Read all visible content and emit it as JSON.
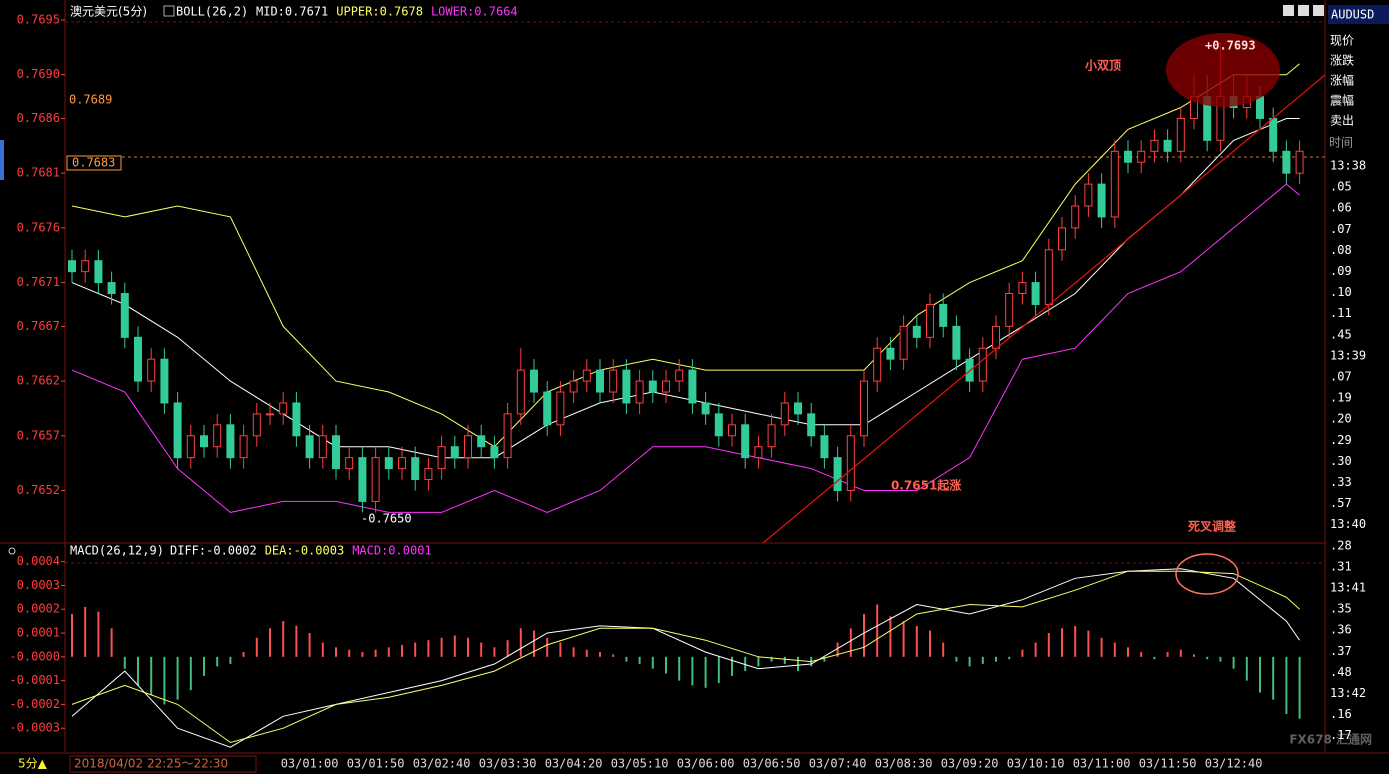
{
  "chart_data": [
    {
      "type": "candlestick",
      "title": "澳元美元(5分)",
      "indicator": "BOLL(26,2)",
      "indicator_values": [
        "MID:0.7671",
        "UPPER:0.7678",
        "LOWER:0.7664"
      ],
      "indicator_colors": [
        "#ffffff",
        "#ffff66",
        "#ff33ff"
      ],
      "categories": [
        null,
        null,
        null,
        null,
        null,
        null,
        null,
        null,
        null,
        null,
        null,
        null,
        null,
        null,
        null,
        null,
        null,
        null,
        "03/01:00",
        null,
        null,
        null,
        null,
        "03/01:50",
        null,
        null,
        null,
        null,
        "03/02:40",
        null,
        null,
        null,
        null,
        "03/03:30",
        null,
        null,
        null,
        null,
        "03/04:20",
        null,
        null,
        null,
        null,
        "03/05:10",
        null,
        null,
        null,
        null,
        "03/06:00",
        null,
        null,
        null,
        null,
        "03/06:50",
        null,
        null,
        null,
        null,
        "03/07:40",
        null,
        null,
        null,
        null,
        "03/08:30",
        null,
        null,
        null,
        null,
        "03/09:20",
        null,
        null,
        null,
        null,
        "03/10:10",
        null,
        null,
        null,
        null,
        "03/11:00",
        null,
        null,
        null,
        null,
        "03/11:50",
        null,
        null,
        null,
        null,
        "03/12:40",
        null,
        null,
        null,
        null,
        null
      ],
      "open": [
        0.7673,
        0.7672,
        0.7673,
        0.7671,
        0.767,
        0.7666,
        0.7662,
        0.7664,
        0.766,
        0.7655,
        0.7657,
        0.7656,
        0.7658,
        0.7655,
        0.7657,
        0.7659,
        0.7659,
        0.766,
        0.7657,
        0.7655,
        0.7657,
        0.7654,
        0.7655,
        0.7651,
        0.7655,
        0.7654,
        0.7655,
        0.7653,
        0.7654,
        0.7656,
        0.7655,
        0.7657,
        0.7656,
        0.7655,
        0.7659,
        0.7663,
        0.7661,
        0.7658,
        0.7661,
        0.7662,
        0.7663,
        0.7661,
        0.7663,
        0.766,
        0.7662,
        0.7661,
        0.7662,
        0.7663,
        0.766,
        0.7659,
        0.7657,
        0.7658,
        0.7655,
        0.7656,
        0.7658,
        0.766,
        0.7659,
        0.7657,
        0.7655,
        0.7652,
        0.7657,
        0.7662,
        0.7665,
        0.7664,
        0.7667,
        0.7666,
        0.7669,
        0.7667,
        0.7664,
        0.7662,
        0.7665,
        0.7667,
        0.767,
        0.7671,
        0.7669,
        0.7674,
        0.7676,
        0.7678,
        0.768,
        0.7677,
        0.7683,
        0.7682,
        0.7683,
        0.7684,
        0.7683,
        0.7686,
        0.7688,
        0.7684,
        0.7688,
        0.7687,
        0.7688,
        0.7686,
        0.7683,
        0.7681
      ],
      "close": [
        0.7672,
        0.7673,
        0.7671,
        0.767,
        0.7666,
        0.7662,
        0.7664,
        0.766,
        0.7655,
        0.7657,
        0.7656,
        0.7658,
        0.7655,
        0.7657,
        0.7659,
        0.7659,
        0.766,
        0.7657,
        0.7655,
        0.7657,
        0.7654,
        0.7655,
        0.7651,
        0.7655,
        0.7654,
        0.7655,
        0.7653,
        0.7654,
        0.7656,
        0.7655,
        0.7657,
        0.7656,
        0.7655,
        0.7659,
        0.7663,
        0.7661,
        0.7658,
        0.7661,
        0.7662,
        0.7663,
        0.7661,
        0.7663,
        0.766,
        0.7662,
        0.7661,
        0.7662,
        0.7663,
        0.766,
        0.7659,
        0.7657,
        0.7658,
        0.7655,
        0.7656,
        0.7658,
        0.766,
        0.7659,
        0.7657,
        0.7655,
        0.7652,
        0.7657,
        0.7662,
        0.7665,
        0.7664,
        0.7667,
        0.7666,
        0.7669,
        0.7667,
        0.7664,
        0.7662,
        0.7665,
        0.7667,
        0.767,
        0.7671,
        0.7669,
        0.7674,
        0.7676,
        0.7678,
        0.768,
        0.7677,
        0.7683,
        0.7682,
        0.7683,
        0.7684,
        0.7683,
        0.7686,
        0.7688,
        0.7684,
        0.7688,
        0.7687,
        0.7688,
        0.7686,
        0.7683,
        0.7681,
        0.7683
      ],
      "high": [
        0.7674,
        0.7674,
        0.7674,
        0.7672,
        0.7671,
        0.7667,
        0.7665,
        0.7665,
        0.7661,
        0.7658,
        0.7658,
        0.7659,
        0.7659,
        0.7658,
        0.766,
        0.766,
        0.7661,
        0.7661,
        0.7658,
        0.7658,
        0.7658,
        0.7656,
        0.7656,
        0.7656,
        0.7656,
        0.7656,
        0.7656,
        0.7655,
        0.7657,
        0.7657,
        0.7658,
        0.7658,
        0.7657,
        0.766,
        0.7665,
        0.7664,
        0.7662,
        0.7662,
        0.7663,
        0.7664,
        0.7664,
        0.7664,
        0.7664,
        0.7663,
        0.7663,
        0.7663,
        0.7664,
        0.7664,
        0.7661,
        0.766,
        0.7659,
        0.7659,
        0.7657,
        0.7659,
        0.7661,
        0.7661,
        0.766,
        0.7658,
        0.7656,
        0.7658,
        0.7663,
        0.7666,
        0.7666,
        0.7668,
        0.7668,
        0.767,
        0.767,
        0.7668,
        0.7665,
        0.7666,
        0.7668,
        0.7671,
        0.7672,
        0.7672,
        0.7675,
        0.7677,
        0.7679,
        0.7681,
        0.7681,
        0.7684,
        0.7684,
        0.7684,
        0.7685,
        0.7685,
        0.7687,
        0.769,
        0.769,
        0.7693,
        0.769,
        0.769,
        0.7689,
        0.7687,
        0.7684,
        0.7684
      ],
      "low": [
        0.7671,
        0.7671,
        0.767,
        0.7669,
        0.7665,
        0.7661,
        0.7661,
        0.7659,
        0.7654,
        0.7654,
        0.7655,
        0.7655,
        0.7654,
        0.7654,
        0.7656,
        0.7658,
        0.7658,
        0.7656,
        0.7654,
        0.7654,
        0.7653,
        0.7653,
        0.765,
        0.765,
        0.7653,
        0.7653,
        0.7652,
        0.7652,
        0.7653,
        0.7654,
        0.7654,
        0.7655,
        0.7654,
        0.7654,
        0.7658,
        0.766,
        0.7657,
        0.7657,
        0.766,
        0.7661,
        0.766,
        0.766,
        0.7659,
        0.7659,
        0.766,
        0.766,
        0.7661,
        0.7659,
        0.7658,
        0.7656,
        0.7656,
        0.7654,
        0.7654,
        0.7655,
        0.7657,
        0.7658,
        0.7656,
        0.7654,
        0.7651,
        0.7651,
        0.7656,
        0.7661,
        0.7663,
        0.7663,
        0.7665,
        0.7665,
        0.7666,
        0.7663,
        0.7661,
        0.7661,
        0.7664,
        0.7666,
        0.7669,
        0.7668,
        0.7668,
        0.7673,
        0.7675,
        0.7677,
        0.7676,
        0.7676,
        0.7681,
        0.7681,
        0.7682,
        0.7682,
        0.7682,
        0.7685,
        0.7683,
        0.7683,
        0.7686,
        0.7686,
        0.7685,
        0.7682,
        0.768,
        0.768
      ],
      "up_color": "#ff4040",
      "down_color": "#33cc99",
      "overlays": [
        {
          "color": "#ffffff",
          "x": [
            0,
            4,
            8,
            12,
            16,
            20,
            24,
            28,
            32,
            36,
            40,
            44,
            48,
            52,
            56,
            60,
            64,
            68,
            72,
            76,
            80,
            84,
            88,
            92,
            93
          ],
          "values": [
            0.7671,
            0.7669,
            0.7666,
            0.7662,
            0.7659,
            0.7656,
            0.7656,
            0.7655,
            0.7655,
            0.7658,
            0.766,
            0.7661,
            0.766,
            0.7659,
            0.7658,
            0.7658,
            0.7661,
            0.7664,
            0.7667,
            0.767,
            0.7675,
            0.7679,
            0.7684,
            0.7686,
            0.7686
          ]
        },
        {
          "color": "#ffff66",
          "x": [
            0,
            4,
            8,
            12,
            16,
            20,
            24,
            28,
            32,
            36,
            40,
            44,
            48,
            52,
            56,
            60,
            64,
            68,
            72,
            76,
            80,
            84,
            88,
            92,
            93
          ],
          "values": [
            0.7678,
            0.7677,
            0.7678,
            0.7677,
            0.7667,
            0.7662,
            0.7661,
            0.7659,
            0.7656,
            0.7661,
            0.7663,
            0.7664,
            0.7663,
            0.7663,
            0.7663,
            0.7663,
            0.7668,
            0.7671,
            0.7673,
            0.768,
            0.7685,
            0.7687,
            0.769,
            0.769,
            0.7691
          ]
        },
        {
          "color": "#ff33ff",
          "x": [
            0,
            4,
            8,
            12,
            16,
            20,
            24,
            28,
            32,
            36,
            40,
            44,
            48,
            52,
            56,
            60,
            64,
            68,
            72,
            76,
            80,
            84,
            88,
            92,
            93
          ],
          "values": [
            0.7663,
            0.7661,
            0.7654,
            0.765,
            0.7651,
            0.7651,
            0.765,
            0.765,
            0.7652,
            0.765,
            0.7652,
            0.7656,
            0.7656,
            0.7655,
            0.7654,
            0.7652,
            0.7652,
            0.7655,
            0.7664,
            0.7665,
            0.767,
            0.7672,
            0.7676,
            0.768,
            0.7679
          ]
        }
      ],
      "ylim": [
        0.76472,
        0.7695
      ],
      "yticks": [
        0.7695,
        {
          "value": 0.769,
          "label": "0.7690"
        },
        0.7686,
        0.7681,
        0.7676,
        0.7671,
        0.7667,
        0.7662,
        0.7657,
        0.7652
      ],
      "tick_color": "#ff3b3b",
      "annotations": [
        "+0.7693",
        "小双顶",
        "0.7651起涨",
        "死叉调整",
        "-0.7650",
        "0.7689",
        "0.7683"
      ]
    },
    {
      "type": "macd",
      "title": "MACD(26,12,9)",
      "indicator_values": [
        "DIFF:-0.0002",
        "DEA:-0.0003",
        "MACD:0.0001"
      ],
      "indicator_colors": [
        "#ffffff",
        "#ffff66",
        "#ff33ff"
      ],
      "histogram": [
        0.00018,
        0.00021,
        0.00019,
        0.00012,
        -5e-05,
        -0.00012,
        -0.00016,
        -0.0002,
        -0.00018,
        -0.00014,
        -8e-05,
        -4e-05,
        -3e-05,
        2e-05,
        8e-05,
        0.00012,
        0.00015,
        0.00013,
        0.0001,
        6e-05,
        4e-05,
        3e-05,
        2e-05,
        3e-05,
        4e-05,
        5e-05,
        6e-05,
        7e-05,
        8e-05,
        9e-05,
        8e-05,
        6e-05,
        4e-05,
        7e-05,
        0.00012,
        0.00011,
        8e-05,
        6e-05,
        4e-05,
        3e-05,
        2e-05,
        1e-05,
        -2e-05,
        -3e-05,
        -5e-05,
        -7e-05,
        -0.0001,
        -0.00012,
        -0.00013,
        -0.00011,
        -8e-05,
        -6e-05,
        -4e-05,
        -2e-05,
        -3e-05,
        -6e-05,
        -4e-05,
        -2e-05,
        6e-05,
        0.00012,
        0.00018,
        0.00022,
        0.00017,
        0.00015,
        0.00013,
        0.00011,
        6e-05,
        -2e-05,
        -4e-05,
        -3e-05,
        -2e-05,
        -1e-05,
        3e-05,
        6e-05,
        0.0001,
        0.00012,
        0.00013,
        0.00011,
        8e-05,
        6e-05,
        4e-05,
        2e-05,
        -1e-05,
        2e-05,
        3e-05,
        1e-05,
        -1e-05,
        -2e-05,
        -5e-05,
        -0.0001,
        -0.00015,
        -0.00018,
        -0.00024,
        -0.00026
      ],
      "positive_color": "#ff5050",
      "negative_color": "#40c080",
      "series": [
        {
          "color": "#ffffff",
          "x": [
            0,
            4,
            8,
            12,
            16,
            20,
            24,
            28,
            32,
            36,
            40,
            44,
            48,
            52,
            56,
            60,
            64,
            68,
            72,
            76,
            80,
            84,
            88,
            92,
            93
          ],
          "values": [
            -0.00025,
            -6e-05,
            -0.0003,
            -0.00038,
            -0.00025,
            -0.0002,
            -0.00015,
            -0.0001,
            -3e-05,
            0.0001,
            0.00013,
            0.00012,
            2e-05,
            -5e-05,
            -3e-05,
            0.0001,
            0.00022,
            0.00018,
            0.00024,
            0.00033,
            0.00036,
            0.00037,
            0.00033,
            0.00015,
            7e-05
          ]
        },
        {
          "color": "#ffff66",
          "x": [
            0,
            4,
            8,
            12,
            16,
            20,
            24,
            28,
            32,
            36,
            40,
            44,
            48,
            52,
            56,
            60,
            64,
            68,
            72,
            76,
            80,
            84,
            88,
            92,
            93
          ],
          "values": [
            -0.0002,
            -0.00012,
            -0.0002,
            -0.00036,
            -0.0003,
            -0.0002,
            -0.00017,
            -0.00012,
            -6e-05,
            5e-05,
            0.00012,
            0.00012,
            7e-05,
            0,
            -2e-05,
            4e-05,
            0.00018,
            0.00022,
            0.00021,
            0.00028,
            0.00036,
            0.00036,
            0.00035,
            0.00025,
            0.0002
          ]
        }
      ],
      "ylim": [
        -0.0004,
        0.00047
      ],
      "yticks": [
        0.0004,
        0.0003,
        0.0002,
        0.0001,
        {
          "value": 0,
          "label": "-0.0000"
        },
        -0.0001,
        -0.0002,
        -0.0003
      ],
      "tick_color": "#ff3b3b"
    }
  ],
  "side_panel": {
    "symbol": "AUDUSD",
    "fields": [
      "现价",
      "涨跌",
      "涨幅",
      "震幅",
      "卖出"
    ],
    "time_header": "时间",
    "ticks": [
      "13:38",
      ".05",
      ".06",
      ".07",
      ".08",
      ".09",
      ".10",
      ".11",
      ".45",
      "13:39",
      ".07",
      ".19",
      ".20",
      ".29",
      ".30",
      ".33",
      ".57",
      "13:40",
      ".28",
      ".31",
      "13:41",
      ".35",
      ".36",
      ".37",
      ".48",
      "13:42",
      ".16",
      ".17"
    ]
  },
  "bottom_bar": {
    "period": "5分▲",
    "range": "2018/04/02 22:25～22:30"
  },
  "watermark": "FX678 汇通网"
}
